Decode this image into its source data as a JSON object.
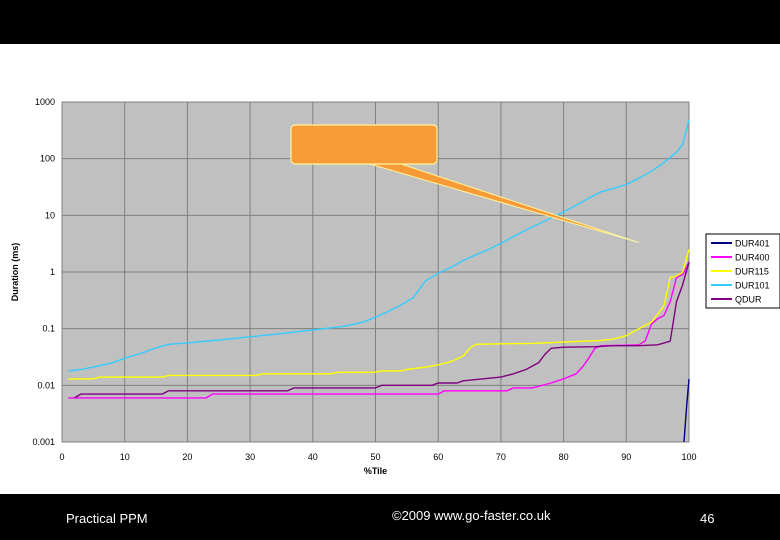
{
  "footer": {
    "left_text": "Practical PPM",
    "center_text": "©2009 www.go-faster.co.uk",
    "page_number": "46"
  },
  "chart_data": {
    "type": "line",
    "title": "",
    "xlabel": "%Tile",
    "ylabel": "Duration (ms)",
    "y_scale": "log",
    "xlim": [
      0,
      100
    ],
    "ylim": [
      0.001,
      1000
    ],
    "x_ticks": [
      "0",
      "10",
      "20",
      "30",
      "40",
      "50",
      "60",
      "70",
      "80",
      "90",
      "100"
    ],
    "y_ticks": [
      "0.001",
      "0.01",
      "0.1",
      "1",
      "10",
      "100",
      "1000"
    ],
    "grid": true,
    "plot_background": "#c0c0c0",
    "legend_position": "right",
    "callout": {
      "text": "",
      "color": "#f79a38",
      "points_to": [
        92,
        3.3
      ]
    },
    "series": [
      {
        "name": "DUR401",
        "color": "#000080",
        "points": [
          [
            99.2,
            0.001
          ],
          [
            99.6,
            0.004
          ],
          [
            100,
            0.013
          ]
        ]
      },
      {
        "name": "DUR400",
        "color": "#ff00ff",
        "points": [
          [
            1,
            0.006
          ],
          [
            3,
            0.006
          ],
          [
            23,
            0.006
          ],
          [
            24,
            0.007
          ],
          [
            60,
            0.007
          ],
          [
            61,
            0.008
          ],
          [
            71,
            0.008
          ],
          [
            72,
            0.009
          ],
          [
            75,
            0.009
          ],
          [
            78,
            0.011
          ],
          [
            80,
            0.013
          ],
          [
            82,
            0.016
          ],
          [
            83,
            0.021
          ],
          [
            84,
            0.03
          ],
          [
            85,
            0.045
          ],
          [
            86,
            0.05
          ],
          [
            90,
            0.051
          ],
          [
            92,
            0.052
          ],
          [
            93,
            0.06
          ],
          [
            94,
            0.12
          ],
          [
            95,
            0.15
          ],
          [
            96,
            0.17
          ],
          [
            97,
            0.3
          ],
          [
            98,
            0.8
          ],
          [
            99,
            0.9
          ],
          [
            100,
            1.5
          ]
        ]
      },
      {
        "name": "DUR115",
        "color": "#ffff00",
        "points": [
          [
            1,
            0.013
          ],
          [
            5,
            0.013
          ],
          [
            6,
            0.014
          ],
          [
            16,
            0.014
          ],
          [
            17,
            0.015
          ],
          [
            31,
            0.015
          ],
          [
            32,
            0.016
          ],
          [
            43,
            0.016
          ],
          [
            44,
            0.017
          ],
          [
            50,
            0.017
          ],
          [
            51,
            0.018
          ],
          [
            54,
            0.018
          ],
          [
            55,
            0.019
          ],
          [
            58,
            0.021
          ],
          [
            60,
            0.023
          ],
          [
            62,
            0.026
          ],
          [
            64,
            0.033
          ],
          [
            65,
            0.045
          ],
          [
            66,
            0.053
          ],
          [
            70,
            0.054
          ],
          [
            75,
            0.055
          ],
          [
            80,
            0.058
          ],
          [
            86,
            0.062
          ],
          [
            88,
            0.066
          ],
          [
            90,
            0.075
          ],
          [
            92,
            0.1
          ],
          [
            94,
            0.13
          ],
          [
            96,
            0.25
          ],
          [
            97,
            0.8
          ],
          [
            98,
            0.85
          ],
          [
            99,
            1.0
          ],
          [
            100,
            2.5
          ]
        ]
      },
      {
        "name": "DUR101",
        "color": "#33ccff",
        "points": [
          [
            1,
            0.018
          ],
          [
            3,
            0.019
          ],
          [
            5,
            0.021
          ],
          [
            8,
            0.025
          ],
          [
            10,
            0.03
          ],
          [
            13,
            0.038
          ],
          [
            15,
            0.046
          ],
          [
            17,
            0.053
          ],
          [
            20,
            0.056
          ],
          [
            25,
            0.063
          ],
          [
            30,
            0.072
          ],
          [
            35,
            0.082
          ],
          [
            40,
            0.095
          ],
          [
            45,
            0.11
          ],
          [
            48,
            0.13
          ],
          [
            50,
            0.16
          ],
          [
            52,
            0.2
          ],
          [
            54,
            0.26
          ],
          [
            56,
            0.35
          ],
          [
            57,
            0.5
          ],
          [
            58,
            0.7
          ],
          [
            60,
            0.95
          ],
          [
            62,
            1.2
          ],
          [
            64,
            1.6
          ],
          [
            66,
            2.0
          ],
          [
            68,
            2.5
          ],
          [
            70,
            3.2
          ],
          [
            72,
            4.2
          ],
          [
            74,
            5.5
          ],
          [
            76,
            7.0
          ],
          [
            78,
            9.0
          ],
          [
            80,
            11.5
          ],
          [
            82,
            15
          ],
          [
            84,
            20
          ],
          [
            86,
            26
          ],
          [
            88,
            30
          ],
          [
            90,
            35
          ],
          [
            92,
            45
          ],
          [
            94,
            60
          ],
          [
            96,
            85
          ],
          [
            98,
            130
          ],
          [
            99,
            180
          ],
          [
            100,
            480
          ]
        ]
      },
      {
        "name": "QDUR",
        "color": "#800080",
        "points": [
          [
            2,
            0.006
          ],
          [
            3,
            0.007
          ],
          [
            16,
            0.007
          ],
          [
            17,
            0.008
          ],
          [
            36,
            0.008
          ],
          [
            37,
            0.009
          ],
          [
            50,
            0.009
          ],
          [
            51,
            0.01
          ],
          [
            59,
            0.01
          ],
          [
            60,
            0.011
          ],
          [
            63,
            0.011
          ],
          [
            64,
            0.012
          ],
          [
            67,
            0.013
          ],
          [
            70,
            0.014
          ],
          [
            72,
            0.016
          ],
          [
            74,
            0.019
          ],
          [
            76,
            0.025
          ],
          [
            77,
            0.035
          ],
          [
            78,
            0.045
          ],
          [
            80,
            0.047
          ],
          [
            85,
            0.048
          ],
          [
            88,
            0.05
          ],
          [
            92,
            0.05
          ],
          [
            95,
            0.052
          ],
          [
            97,
            0.06
          ],
          [
            98,
            0.3
          ],
          [
            99,
            0.6
          ],
          [
            100,
            1.5
          ]
        ]
      }
    ]
  }
}
